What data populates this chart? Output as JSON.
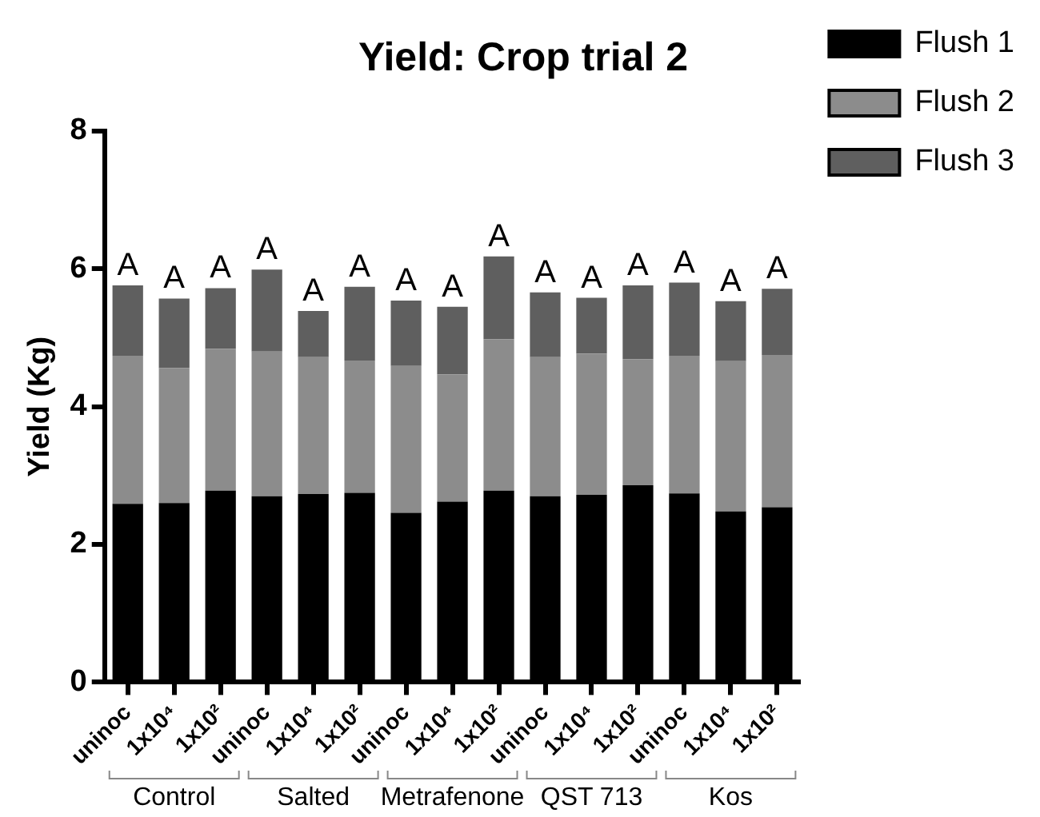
{
  "chart_data": {
    "type": "bar",
    "title": "Yield: Crop trial 2",
    "ylabel": "Yield (Kg)",
    "stacked": true,
    "legend": "top right",
    "grid": false,
    "categories": [
      "uninoc",
      "1x10⁴",
      "1x10²",
      "uninoc",
      "1x10⁴",
      "1x10²",
      "uninoc",
      "1x10⁴",
      "1x10²",
      "uninoc",
      "1x10⁴",
      "1x10²",
      "uninoc",
      "1x10⁴",
      "1x10²"
    ],
    "ylim": [
      0,
      8
    ],
    "yticks": [
      0,
      2,
      4,
      6,
      8
    ],
    "annotations": [
      "Control",
      "Salted",
      "Metrafenone",
      "QST 713",
      "Kos"
    ],
    "series": [
      {
        "name": "Flush 1",
        "color": "#000000",
        "values": [
          2.59,
          2.6,
          2.78,
          2.7,
          2.73,
          2.75,
          2.46,
          2.62,
          2.78,
          2.7,
          2.72,
          2.86,
          2.74,
          2.48,
          2.54
        ]
      },
      {
        "name": "Flush 2",
        "color": "#8c8c8c",
        "values": [
          2.15,
          1.96,
          2.06,
          2.1,
          1.99,
          1.92,
          2.13,
          1.85,
          2.2,
          2.02,
          2.05,
          1.83,
          2,
          2.18,
          2.21
        ]
      },
      {
        "name": "Flush 3",
        "color": "#5f5f5f",
        "values": [
          1.02,
          1.01,
          0.88,
          1.19,
          0.67,
          1.07,
          0.95,
          0.98,
          1.2,
          0.94,
          0.81,
          1.07,
          1.06,
          0.87,
          0.96
        ],
        "value_labels": [
          "A",
          "A",
          "A",
          "A",
          "A",
          "A",
          "A",
          "A",
          "A",
          "A",
          "A",
          "A",
          "A",
          "A",
          "A"
        ]
      }
    ]
  }
}
